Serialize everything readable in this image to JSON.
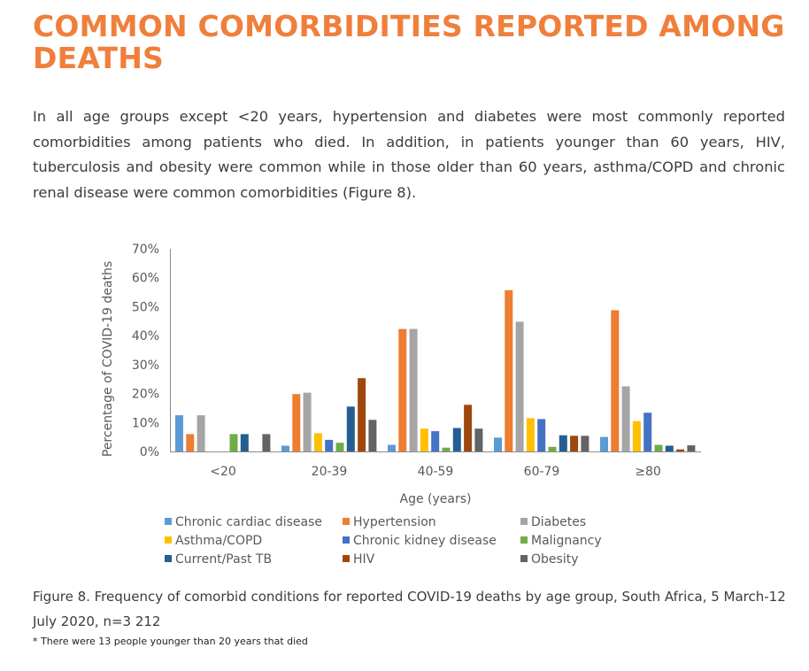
{
  "title": "COMMON COMORBIDITIES REPORTED AMONG DEATHS",
  "paragraph": "In all age groups except <20 years, hypertension and diabetes were most commonly reported comorbidities among patients who died. In addition, in patients younger than 60 years, HIV, tuberculosis and obesity were common while in those older than 60 years, asthma/COPD and chronic renal disease were common comorbidities (Figure 8).",
  "caption": "Figure 8. Frequency of comorbid conditions for reported COVID-19 deaths by age group, South Africa, 5 March-12 July 2020, n=3 212",
  "footnote": "* There were 13 people younger than 20 years that died",
  "chart_data": {
    "type": "bar",
    "xlabel": "Age (years)",
    "ylabel": "Percentage of COVID-19 deaths",
    "ylim": [
      0,
      70
    ],
    "yticks": [
      "0%",
      "10%",
      "20%",
      "30%",
      "40%",
      "50%",
      "60%",
      "70%"
    ],
    "grid": false,
    "legend_position": "bottom",
    "categories": [
      "<20",
      "20-39",
      "40-59",
      "60-79",
      "≥80"
    ],
    "series": [
      {
        "name": "Chronic cardiac disease",
        "color": "#5b9bd5",
        "values": [
          12.5,
          2,
          2.3,
          4.8,
          5
        ]
      },
      {
        "name": "Hypertension",
        "color": "#ed7d31",
        "values": [
          6,
          19.8,
          42.3,
          55.7,
          48.8
        ]
      },
      {
        "name": "Diabetes",
        "color": "#a5a5a5",
        "values": [
          12.5,
          20.3,
          42.3,
          44.8,
          22.5
        ]
      },
      {
        "name": "Asthma/COPD",
        "color": "#ffc000",
        "values": [
          0,
          6.3,
          7.9,
          11.5,
          10.5
        ]
      },
      {
        "name": "Chronic kidney disease",
        "color": "#4472c4",
        "values": [
          0,
          4,
          7,
          11.2,
          13.4
        ]
      },
      {
        "name": "Malignancy",
        "color": "#70ad47",
        "values": [
          6,
          3,
          1.3,
          1.6,
          2.3
        ]
      },
      {
        "name": "Current/Past TB",
        "color": "#255e91",
        "values": [
          6,
          15.5,
          8.1,
          5.6,
          2
        ]
      },
      {
        "name": "HIV",
        "color": "#9e480e",
        "values": [
          0,
          25.3,
          16.1,
          5.4,
          0.7
        ]
      },
      {
        "name": "Obesity",
        "color": "#636363",
        "values": [
          6,
          10.9,
          7.9,
          5.4,
          2.1
        ]
      }
    ]
  }
}
